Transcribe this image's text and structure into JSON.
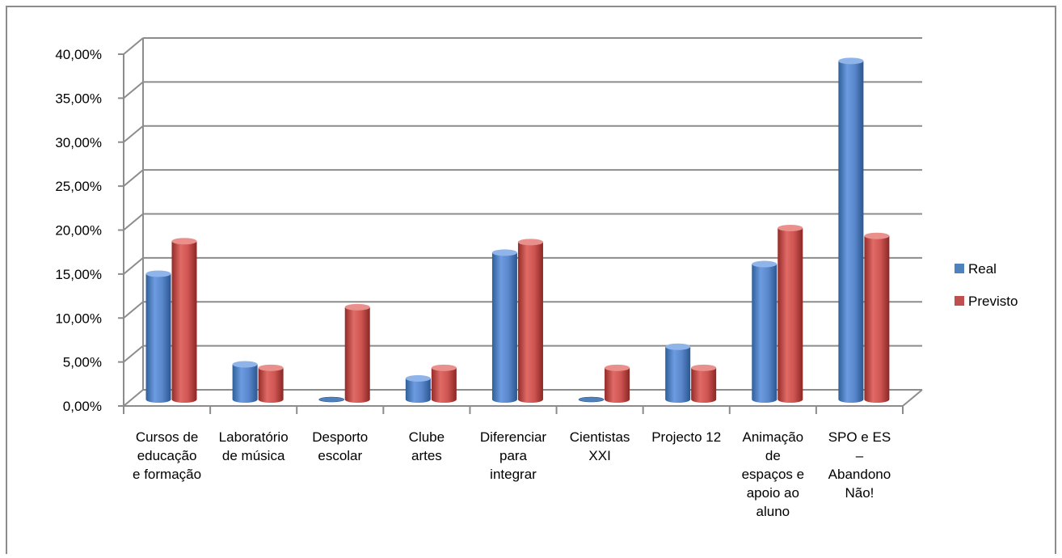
{
  "chart_data": {
    "type": "bar",
    "title": "",
    "xlabel": "",
    "ylabel": "",
    "ylim": [
      0,
      40
    ],
    "y_ticks": [
      "0,00%",
      "5,00%",
      "10,00%",
      "15,00%",
      "20,00%",
      "25,00%",
      "30,00%",
      "35,00%",
      "40,00%"
    ],
    "grid": true,
    "legend_position": "right",
    "categories": [
      [
        "Cursos de",
        "educação",
        "e formação"
      ],
      [
        "Laboratório",
        "de música"
      ],
      [
        "Desporto",
        "escolar"
      ],
      [
        "Clube",
        "artes"
      ],
      [
        "Diferenciar",
        "para",
        "integrar"
      ],
      [
        "Cientistas",
        "XXI"
      ],
      [
        "Projecto 12"
      ],
      [
        "Animação",
        "de",
        "espaços e",
        "apoio ao",
        "aluno"
      ],
      [
        "SPO e ES",
        "–",
        "Abandono",
        "Não!"
      ]
    ],
    "series": [
      {
        "name": "Real",
        "color": "#4f81bd",
        "values": [
          14.3,
          4.0,
          0.0,
          2.4,
          16.7,
          0.0,
          6.0,
          15.4,
          38.5
        ]
      },
      {
        "name": "Previsto",
        "color": "#c0504d",
        "values": [
          18.0,
          3.6,
          10.5,
          3.6,
          17.9,
          3.6,
          3.6,
          19.5,
          18.6
        ]
      }
    ]
  }
}
